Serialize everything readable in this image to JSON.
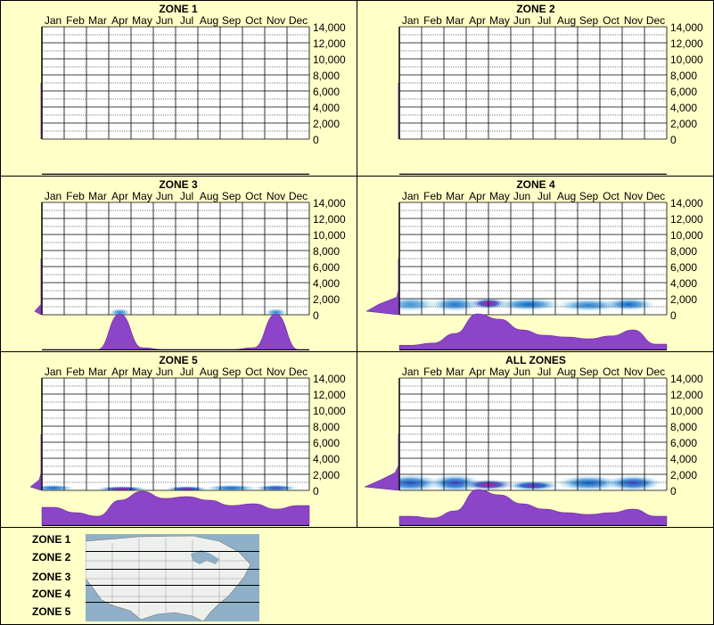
{
  "colors": {
    "background": "#ffffc8",
    "grid": "#000000",
    "profile": "#8c44c8",
    "heat_low": "#c8f0f8",
    "heat_mid": "#0064c8",
    "heat_high": "#dc00a0"
  },
  "chart_data": [
    {
      "type": "heatmap",
      "title": "ZONE 1",
      "categories": [
        "Jan",
        "Feb",
        "Mar",
        "Apr",
        "May",
        "Jun",
        "Jul",
        "Aug",
        "Sep",
        "Oct",
        "Nov",
        "Dec"
      ],
      "yticks": [
        "14,000",
        "12,000",
        "10,000",
        "8,000",
        "6,000",
        "4,000",
        "2,000",
        "0"
      ],
      "ylim": [
        0,
        14000
      ],
      "monthly_profile": [
        0,
        0,
        0,
        0,
        0,
        0,
        0,
        0,
        0,
        0,
        0,
        0
      ],
      "elevation_profile": [
        0,
        0,
        0,
        0,
        0,
        0,
        0,
        0
      ],
      "hotspots": []
    },
    {
      "type": "heatmap",
      "title": "ZONE 2",
      "categories": [
        "Jan",
        "Feb",
        "Mar",
        "Apr",
        "May",
        "Jun",
        "Jul",
        "Aug",
        "Sep",
        "Oct",
        "Nov",
        "Dec"
      ],
      "yticks": [
        "14,000",
        "12,000",
        "10,000",
        "8,000",
        "6,000",
        "4,000",
        "2,000",
        "0"
      ],
      "ylim": [
        0,
        14000
      ],
      "monthly_profile": [
        0,
        0,
        0,
        0,
        0,
        0,
        0,
        0,
        0,
        0,
        0,
        0
      ],
      "elevation_profile": [
        0,
        0,
        0,
        0,
        0,
        0,
        0,
        0
      ],
      "hotspots": []
    },
    {
      "type": "heatmap",
      "title": "ZONE 3",
      "categories": [
        "Jan",
        "Feb",
        "Mar",
        "Apr",
        "May",
        "Jun",
        "Jul",
        "Aug",
        "Sep",
        "Oct",
        "Nov",
        "Dec"
      ],
      "yticks": [
        "14,000",
        "12,000",
        "10,000",
        "8,000",
        "6,000",
        "4,000",
        "2,000",
        "0"
      ],
      "ylim": [
        0,
        14000
      ],
      "monthly_profile": [
        0,
        0,
        0,
        1.0,
        0.05,
        0,
        0,
        0,
        0,
        0.05,
        1.0,
        0
      ],
      "elevation_profile": [
        0.18,
        0,
        0,
        0,
        0,
        0,
        0,
        0
      ],
      "hotspots": [
        {
          "month": 3.5,
          "elev": 300,
          "w": 0.5,
          "h": 500,
          "v": 0.4
        },
        {
          "month": 10.5,
          "elev": 300,
          "w": 0.5,
          "h": 500,
          "v": 0.4
        }
      ]
    },
    {
      "type": "heatmap",
      "title": "ZONE 4",
      "categories": [
        "Jan",
        "Feb",
        "Mar",
        "Apr",
        "May",
        "Jun",
        "Jul",
        "Aug",
        "Sep",
        "Oct",
        "Nov",
        "Dec"
      ],
      "yticks": [
        "14,000",
        "12,000",
        "10,000",
        "8,000",
        "6,000",
        "4,000",
        "2,000",
        "0"
      ],
      "ylim": [
        0,
        14000
      ],
      "monthly_profile": [
        0.12,
        0.18,
        0.45,
        1.0,
        0.85,
        0.55,
        0.4,
        0.35,
        0.3,
        0.38,
        0.55,
        0.15
      ],
      "elevation_profile": [
        0.9,
        0.55,
        0.05,
        0,
        0,
        0,
        0,
        0
      ],
      "hotspots": [
        {
          "month": 0.5,
          "elev": 1300,
          "w": 1.2,
          "h": 900,
          "v": 0.35
        },
        {
          "month": 2.5,
          "elev": 1300,
          "w": 1.2,
          "h": 900,
          "v": 0.45
        },
        {
          "month": 4.0,
          "elev": 1400,
          "w": 0.9,
          "h": 700,
          "v": 1.0
        },
        {
          "month": 5.8,
          "elev": 1300,
          "w": 1.5,
          "h": 800,
          "v": 0.5
        },
        {
          "month": 8.5,
          "elev": 1200,
          "w": 1.5,
          "h": 800,
          "v": 0.4
        },
        {
          "month": 10.3,
          "elev": 1300,
          "w": 1.2,
          "h": 800,
          "v": 0.5
        }
      ]
    },
    {
      "type": "heatmap",
      "title": "ZONE 5",
      "categories": [
        "Jan",
        "Feb",
        "Mar",
        "Apr",
        "May",
        "Jun",
        "Jul",
        "Aug",
        "Sep",
        "Oct",
        "Nov",
        "Dec"
      ],
      "yticks": [
        "14,000",
        "12,000",
        "10,000",
        "8,000",
        "6,000",
        "4,000",
        "2,000",
        "0"
      ],
      "ylim": [
        0,
        14000
      ],
      "monthly_profile": [
        0.5,
        0.35,
        0.25,
        0.7,
        0.95,
        0.75,
        0.8,
        0.7,
        0.55,
        0.6,
        0.45,
        0.55
      ],
      "elevation_profile": [
        0.3,
        0.05,
        0,
        0,
        0,
        0,
        0,
        0
      ],
      "hotspots": [
        {
          "month": 0.5,
          "elev": 300,
          "w": 1.0,
          "h": 400,
          "v": 0.55
        },
        {
          "month": 3.6,
          "elev": 200,
          "w": 1.2,
          "h": 300,
          "v": 0.95
        },
        {
          "month": 6.5,
          "elev": 200,
          "w": 1.0,
          "h": 300,
          "v": 0.9
        },
        {
          "month": 8.5,
          "elev": 300,
          "w": 1.2,
          "h": 400,
          "v": 0.55
        },
        {
          "month": 10.5,
          "elev": 300,
          "w": 1.0,
          "h": 400,
          "v": 0.7
        }
      ]
    },
    {
      "type": "heatmap",
      "title": "ALL ZONES",
      "categories": [
        "Jan",
        "Feb",
        "Mar",
        "Apr",
        "May",
        "Jun",
        "Jul",
        "Aug",
        "Sep",
        "Oct",
        "Nov",
        "Dec"
      ],
      "yticks": [
        "14,000",
        "12,000",
        "10,000",
        "8,000",
        "6,000",
        "4,000",
        "2,000",
        "0"
      ],
      "ylim": [
        0,
        14000
      ],
      "monthly_profile": [
        0.25,
        0.2,
        0.4,
        1.0,
        0.85,
        0.6,
        0.45,
        0.35,
        0.3,
        0.35,
        0.45,
        0.25
      ],
      "elevation_profile": [
        0.95,
        0.5,
        0.1,
        0,
        0,
        0,
        0,
        0
      ],
      "hotspots": [
        {
          "month": 0.5,
          "elev": 900,
          "w": 1.4,
          "h": 1100,
          "v": 0.6
        },
        {
          "month": 2.5,
          "elev": 900,
          "w": 1.2,
          "h": 1100,
          "v": 0.65
        },
        {
          "month": 4.0,
          "elev": 700,
          "w": 1.2,
          "h": 700,
          "v": 1.0
        },
        {
          "month": 6.0,
          "elev": 600,
          "w": 1.2,
          "h": 600,
          "v": 0.85
        },
        {
          "month": 8.5,
          "elev": 900,
          "w": 1.5,
          "h": 1000,
          "v": 0.55
        },
        {
          "month": 10.5,
          "elev": 900,
          "w": 1.3,
          "h": 1000,
          "v": 0.65
        }
      ]
    }
  ],
  "legend": {
    "zones": [
      "ZONE 1",
      "ZONE 2",
      "ZONE 3",
      "ZONE 4",
      "ZONE 5"
    ]
  }
}
